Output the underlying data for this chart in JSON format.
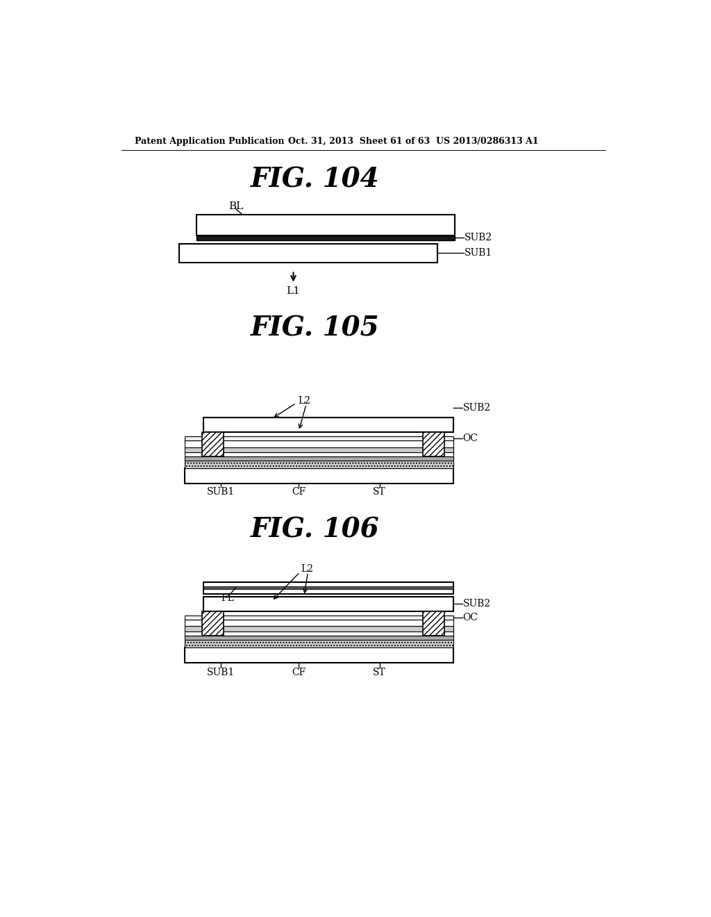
{
  "bg_color": "#ffffff",
  "header_left": "Patent Application Publication",
  "header_mid": "Oct. 31, 2013  Sheet 61 of 63",
  "header_right": "US 2013/0286313 A1"
}
